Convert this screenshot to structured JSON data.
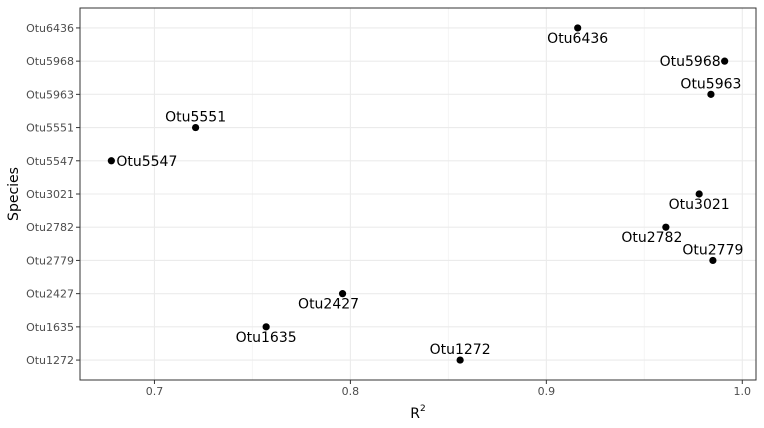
{
  "chart_data": {
    "type": "scatter",
    "xlabel": "R",
    "xlabel_superscript": "2",
    "ylabel": "Species",
    "xlim": [
      0.662,
      1.007
    ],
    "x_ticks": [
      0.7,
      0.8,
      0.9,
      1.0
    ],
    "x_tick_labels": [
      "0.7",
      "0.8",
      "0.9",
      "1.0"
    ],
    "categories": [
      "Otu6436",
      "Otu5968",
      "Otu5963",
      "Otu5551",
      "Otu5547",
      "Otu3021",
      "Otu2782",
      "Otu2779",
      "Otu2427",
      "Otu1635",
      "Otu1272"
    ],
    "points": [
      {
        "species": "Otu6436",
        "x": 0.916,
        "label": "Otu6436",
        "label_pos": "below"
      },
      {
        "species": "Otu5968",
        "x": 0.991,
        "label": "Otu5968",
        "label_pos": "left"
      },
      {
        "species": "Otu5963",
        "x": 0.984,
        "label": "Otu5963",
        "label_pos": "above"
      },
      {
        "species": "Otu5551",
        "x": 0.721,
        "label": "Otu5551",
        "label_pos": "above"
      },
      {
        "species": "Otu5547",
        "x": 0.678,
        "label": "Otu5547",
        "label_pos": "right"
      },
      {
        "species": "Otu3021",
        "x": 0.978,
        "label": "Otu3021",
        "label_pos": "below"
      },
      {
        "species": "Otu2782",
        "x": 0.961,
        "label": "Otu2782",
        "label_pos": "below-left"
      },
      {
        "species": "Otu2779",
        "x": 0.985,
        "label": "Otu2779",
        "label_pos": "above"
      },
      {
        "species": "Otu2427",
        "x": 0.796,
        "label": "Otu2427",
        "label_pos": "below-left"
      },
      {
        "species": "Otu1635",
        "x": 0.757,
        "label": "Otu1635",
        "label_pos": "below"
      },
      {
        "species": "Otu1272",
        "x": 0.856,
        "label": "Otu1272",
        "label_pos": "above"
      }
    ],
    "grid": true,
    "legend": "none",
    "colors": {
      "point": "#000000",
      "panel_border": "#333333",
      "grid_major": "#ebebeb",
      "grid_minor": "#f5f5f5"
    }
  }
}
